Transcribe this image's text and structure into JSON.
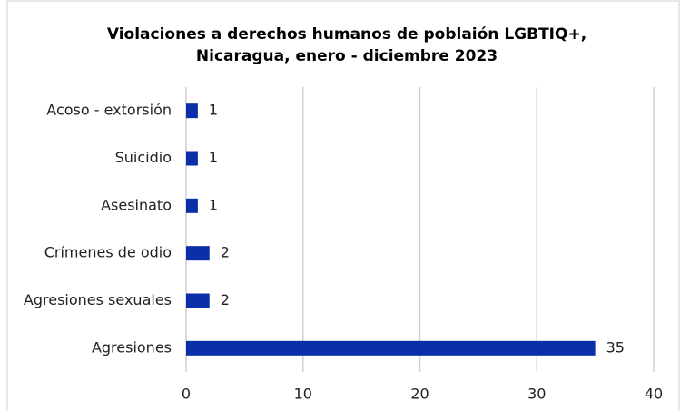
{
  "chart_data": {
    "type": "barh",
    "title": [
      "Violaciones a derechos humanos de poblaión LGBTIQ+,",
      "Nicaragua, enero - diciembre 2023"
    ],
    "categories": [
      "Acoso - extorsión",
      "Suicidio",
      "Asesinato",
      "Crímenes de odio",
      "Agresiones sexuales",
      "Agresiones"
    ],
    "values": [
      1,
      1,
      1,
      2,
      2,
      35
    ],
    "color": "#0b2fa8",
    "xlim": [
      0,
      40
    ],
    "xticks": [
      0,
      10,
      20,
      30,
      40
    ],
    "grid": true
  }
}
